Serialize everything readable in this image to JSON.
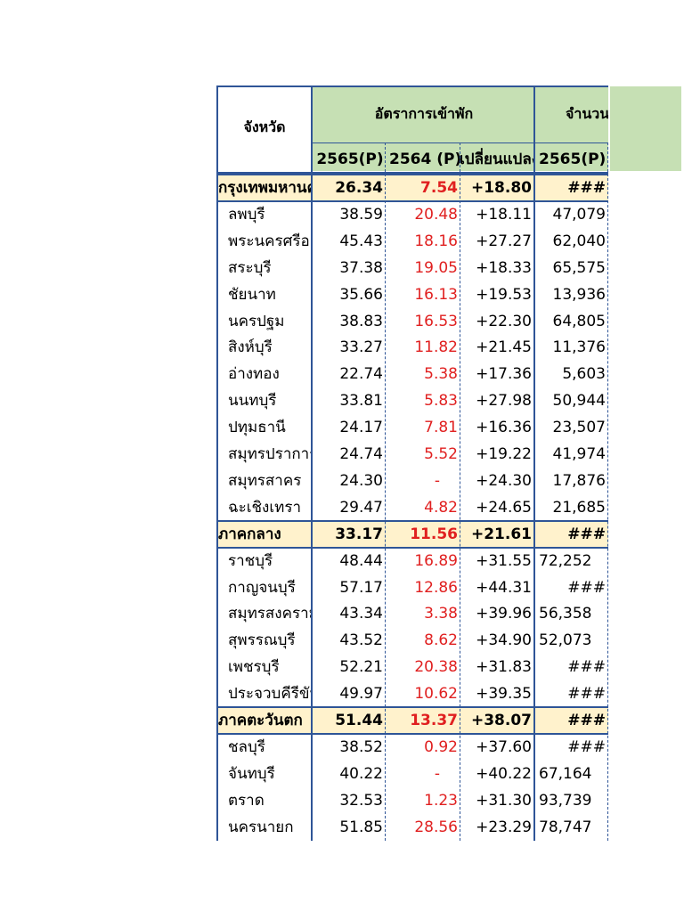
{
  "header": {
    "province_label": "จังหวัด",
    "occupancy_label": "อัตราการเข้าพัก",
    "count_label": "จำนวน",
    "sub_columns": [
      "2565(P)",
      "2564 (P)",
      "เปลี่ยนแปลง",
      "2565(P)"
    ]
  },
  "rows": [
    {
      "name": "กรุงเทพมหานคร",
      "y2565": "26.34",
      "y2564": "7.54",
      "change": "+18.80",
      "count": "###",
      "summary": true
    },
    {
      "name": "ลพบุรี",
      "y2565": "38.59",
      "y2564": "20.48",
      "change": "+18.11",
      "count": "47,079"
    },
    {
      "name": "พระนครศรีอยุธยา",
      "y2565": "45.43",
      "y2564": "18.16",
      "change": "+27.27",
      "count": "62,040"
    },
    {
      "name": "สระบุรี",
      "y2565": "37.38",
      "y2564": "19.05",
      "change": "+18.33",
      "count": "65,575"
    },
    {
      "name": "ชัยนาท",
      "y2565": "35.66",
      "y2564": "16.13",
      "change": "+19.53",
      "count": "13,936"
    },
    {
      "name": "นครปฐม",
      "y2565": "38.83",
      "y2564": "16.53",
      "change": "+22.30",
      "count": "64,805"
    },
    {
      "name": "สิงห์บุรี",
      "y2565": "33.27",
      "y2564": "11.82",
      "change": "+21.45",
      "count": "11,376"
    },
    {
      "name": "อ่างทอง",
      "y2565": "22.74",
      "y2564": "5.38",
      "change": "+17.36",
      "count": "5,603"
    },
    {
      "name": "นนทบุรี",
      "y2565": "33.81",
      "y2564": "5.83",
      "change": "+27.98",
      "count": "50,944"
    },
    {
      "name": "ปทุมธานี",
      "y2565": "24.17",
      "y2564": "7.81",
      "change": "+16.36",
      "count": "23,507"
    },
    {
      "name": "สมุทรปราการ",
      "y2565": "24.74",
      "y2564": "5.52",
      "change": "+19.22",
      "count": "41,974"
    },
    {
      "name": "สมุทรสาคร",
      "y2565": "24.30",
      "y2564": "-",
      "change": "+24.30",
      "count": "17,876"
    },
    {
      "name": "ฉะเชิงเทรา",
      "y2565": "29.47",
      "y2564": "4.82",
      "change": "+24.65",
      "count": "21,685"
    },
    {
      "name": "ภาคกลาง",
      "y2565": "33.17",
      "y2564": "11.56",
      "change": "+21.61",
      "count": "###",
      "summary": true
    },
    {
      "name": "ราชบุรี",
      "y2565": "48.44",
      "y2564": "16.89",
      "change": "+31.55",
      "count": "72,252",
      "count_left": true
    },
    {
      "name": "กาญจนบุรี",
      "y2565": "57.17",
      "y2564": "12.86",
      "change": "+44.31",
      "count": "###"
    },
    {
      "name": "สมุทรสงคราม",
      "y2565": "43.34",
      "y2564": "3.38",
      "change": "+39.96",
      "count": "56,358",
      "count_left": true
    },
    {
      "name": "สุพรรณบุรี",
      "y2565": "43.52",
      "y2564": "8.62",
      "change": "+34.90",
      "count": "52,073",
      "count_left": true
    },
    {
      "name": "เพชรบุรี",
      "y2565": "52.21",
      "y2564": "20.38",
      "change": "+31.83",
      "count": "###"
    },
    {
      "name": "ประจวบคีรีขันธ์",
      "y2565": "49.97",
      "y2564": "10.62",
      "change": "+39.35",
      "count": "###"
    },
    {
      "name": "ภาคตะวันตก",
      "y2565": "51.44",
      "y2564": "13.37",
      "change": "+38.07",
      "count": "###",
      "summary": true
    },
    {
      "name": "ชลบุรี",
      "y2565": "38.52",
      "y2564": "0.92",
      "change": "+37.60",
      "count": "###"
    },
    {
      "name": "จันทบุรี",
      "y2565": "40.22",
      "y2564": "-",
      "change": "+40.22",
      "count": "67,164",
      "count_left": true
    },
    {
      "name": "ตราด",
      "y2565": "32.53",
      "y2564": "1.23",
      "change": "+31.30",
      "count": "93,739",
      "count_left": true
    },
    {
      "name": "นครนายก",
      "y2565": "51.85",
      "y2564": "28.56",
      "change": "+23.29",
      "count": "78,747",
      "count_left": true
    }
  ],
  "colors": {
    "header_fill": "#c6e0b4",
    "summary_fill": "#fff2cc",
    "border_blue": "#2f5597",
    "negative_red": "#e02020"
  }
}
